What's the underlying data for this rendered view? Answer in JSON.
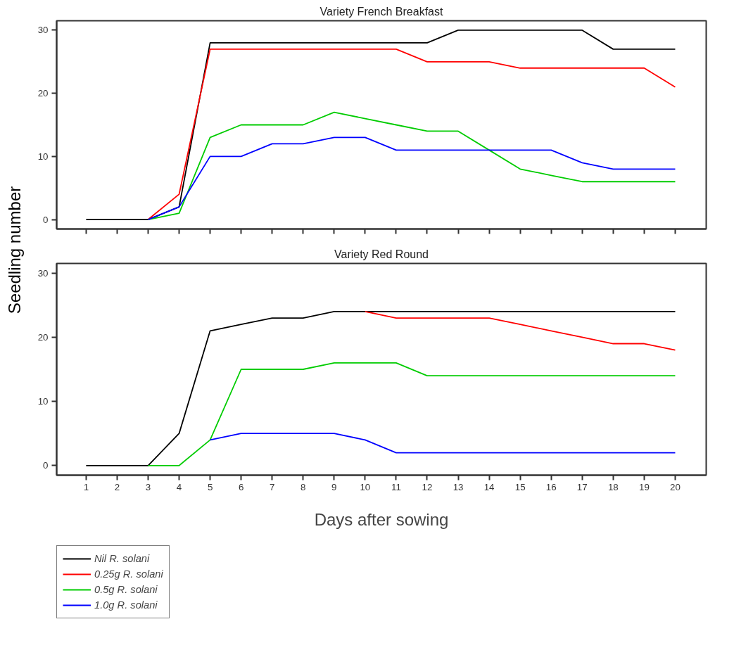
{
  "chart_data": [
    {
      "type": "line",
      "title": "Variety French Breakfast",
      "ylabel": "Seedling number",
      "x": [
        1,
        2,
        3,
        4,
        5,
        6,
        7,
        8,
        9,
        10,
        11,
        12,
        13,
        14,
        15,
        16,
        17,
        18,
        19,
        20
      ],
      "xlim": [
        0.05,
        21
      ],
      "xticks": [
        1,
        2,
        3,
        4,
        5,
        6,
        7,
        8,
        9,
        10,
        11,
        12,
        13,
        14,
        15,
        16,
        17,
        18,
        19,
        20
      ],
      "ylim": [
        -1.5,
        31.5
      ],
      "yticks": [
        0,
        10,
        20,
        30
      ],
      "tick_labels": "y",
      "grid": false,
      "legend": false,
      "line_style": "solid",
      "marker": "none",
      "series": [
        {
          "color": "#000000",
          "values": [
            0,
            0,
            0,
            2,
            28,
            28,
            28,
            28,
            28,
            28,
            28,
            28,
            30,
            30,
            30,
            30,
            30,
            27,
            27,
            27
          ]
        },
        {
          "color": "#ff0000",
          "values": [
            null,
            null,
            0,
            4,
            27,
            27,
            27,
            27,
            27,
            27,
            27,
            25,
            25,
            25,
            24,
            24,
            24,
            24,
            24,
            21
          ]
        },
        {
          "color": "#00cc00",
          "values": [
            null,
            null,
            0,
            1,
            13,
            15,
            15,
            15,
            17,
            16,
            15,
            14,
            14,
            11,
            8,
            7,
            6,
            6,
            6,
            6
          ]
        },
        {
          "color": "#0000ff",
          "values": [
            null,
            null,
            0,
            2,
            10,
            10,
            12,
            12,
            13,
            13,
            11,
            11,
            11,
            11,
            11,
            11,
            9,
            8,
            8,
            8
          ]
        }
      ]
    },
    {
      "type": "line",
      "title": "Variety Red Round",
      "xlabel": "Days after sowing",
      "x": [
        1,
        2,
        3,
        4,
        5,
        6,
        7,
        8,
        9,
        10,
        11,
        12,
        13,
        14,
        15,
        16,
        17,
        18,
        19,
        20
      ],
      "xlim": [
        0.05,
        21
      ],
      "xticks": [
        1,
        2,
        3,
        4,
        5,
        6,
        7,
        8,
        9,
        10,
        11,
        12,
        13,
        14,
        15,
        16,
        17,
        18,
        19,
        20
      ],
      "ylim": [
        -1.5,
        31.5
      ],
      "yticks": [
        0,
        10,
        20,
        30
      ],
      "grid": false,
      "legend": "bottom left",
      "line_style": "solid",
      "marker": "none",
      "series": [
        {
          "name": "Nil R. solani",
          "color": "#000000",
          "values": [
            0,
            0,
            0,
            5,
            21,
            22,
            23,
            23,
            24,
            24,
            24,
            24,
            24,
            24,
            24,
            24,
            24,
            24,
            24,
            24
          ]
        },
        {
          "name": "0.25g R. solani",
          "color": "#ff0000",
          "values": [
            null,
            null,
            null,
            null,
            null,
            null,
            null,
            null,
            null,
            24,
            23,
            23,
            23,
            23,
            22,
            21,
            20,
            19,
            19,
            18
          ]
        },
        {
          "name": "0.5g R. solani",
          "color": "#00cc00",
          "values": [
            null,
            null,
            0,
            0,
            4,
            15,
            15,
            15,
            16,
            16,
            16,
            14,
            14,
            14,
            14,
            14,
            14,
            14,
            14,
            14
          ]
        },
        {
          "name": "1.0g R. solani",
          "color": "#0000ff",
          "values": [
            null,
            null,
            null,
            null,
            4,
            5,
            5,
            5,
            5,
            4,
            2,
            2,
            2,
            2,
            2,
            2,
            2,
            2,
            2,
            2
          ]
        }
      ]
    }
  ]
}
